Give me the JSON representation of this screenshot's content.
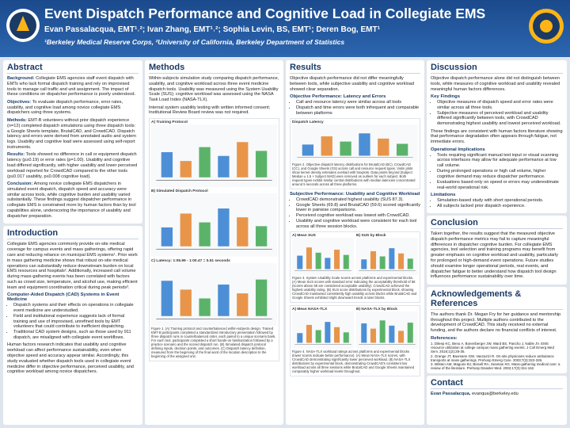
{
  "header": {
    "title": "Event Dispatch Performance and Cognitive Load in Collegiate EMS",
    "authors": "Evan Passalacqua, EMT¹˒²; Ivan Zhang, EMT¹˒²; Sophia Levin, BS, EMT¹; Deren Bog, EMT¹",
    "affiliations": "¹Berkeley Medical Reserve Corps, ²University of California, Berkeley Department of Statistics"
  },
  "sections": {
    "abstract": {
      "heading": "Abstract",
      "blocks": [
        {
          "label": "Background:",
          "p": "Collegiate EMS agencies staff event dispatch with EMTs who lack formal dispatch training and rely on improvised tools to manage call traffic and unit assignment. The impact of these conditions on dispatcher performance is poorly understood."
        },
        {
          "label": "Objectives:",
          "p": "To evaluate dispatch performance, error rates, usability, and cognitive load among novice collegiate EMS dispatchers using three systems."
        },
        {
          "label": "Methods:",
          "p": "EMT-B volunteers without prior dispatch experience (n=12) completed dispatch simulations using three dispatch tools: a Google Sheets template, BrutalCAD, and CrowdCAD. Dispatch latency and errors were derived from annotated audio and system logs. Usability and cognitive load were assessed using self-report instruments."
        },
        {
          "label": "Results:",
          "p": "Tools showed no difference in call or equipment dispatch latency (p≥0.19) or error rates (p=1.00). Usability and cognitive load differed significantly, with higher usability and lower perceived workload reported for CrowdCAD compared to the other tools (p≤0.017 usability, p≤0.008 cognitive load)."
        },
        {
          "label": "Conclusion:",
          "p": "Among novice collegiate EMS dispatchers in simulated event dispatch, dispatch speed and accuracy were similar across tools, while cognitive burden and usability varied substantially. These findings suggest dispatcher performance in collegiate EMS is constrained more by human factors than by tool capabilities alone, underscoring the importance of usability and dispatcher preparation."
        }
      ]
    },
    "introduction": {
      "heading": "Introduction",
      "blocks": [
        {
          "p": "Collegiate EMS agencies commonly provide on-site medical coverage for campus events and mass gatherings, offering rapid care and reducing reliance on municipal EMS systems¹. Prior work in mass gathering medicine shows that robust on-site medical operations can substantially reduce downstream burden on local EMS resources and hospitals². Additionally, increased call volume during mass-gathering events has been correlated with factors such as crowd size, temperature, and alcohol use, making efficient team and equipment coordination critical during peak periods³."
        },
        {
          "sub": "Computer-Aided Dispatch (CAD) Systems in Event Medicine"
        },
        {
          "bullets": [
            "Dispatch systems and their effects on operations in collegiate event medicine are understudied.",
            "Field and institutional experience suggests lack of formal training and use of improvised, unrefined tools by EMT volunteers that could contribute to inefficient dispatching.",
            "Traditional CAD system designs, such as those used by 911 dispatch, are misaligned with collegiate event workflows."
          ]
        },
        {
          "p": "Human factors research indicates that usability and cognitive workload can affect performance sustainability, even when objective speed and accuracy appear similar. Accordingly, this study evaluated whether dispatch tools used in collegiate event medicine differ in objective performance, perceived usability, and cognitive workload among novice dispatchers."
        }
      ]
    },
    "methods": {
      "heading": "Methods",
      "blocks": [
        {
          "p": "Within-subjects simulation study comparing dispatch performance, usability, and cognitive workload across three event medicine dispatch tools. Usability was measured using the System Usability Scale (SUS); cognitive workload was assessed using the NASA Task Load Index (NASA-TLX)."
        },
        {
          "p": "Internal system usability testing with written informed consent; Institutional Review Board review was not required."
        },
        {
          "figure": {
            "panels": [
              "A) Training Protocol",
              "B) Simulated Dispatch Protocol",
              "C) Latency: 1:05.99 - 1:00.47 = 5.51 seconds"
            ],
            "caption": "Figure 1. (A) Training protocol and counterbalanced within-subjects design. Trained EMT-B participants completed a standardized introductory presentation followed by three dispatch runs in counterbalanced order, each paired to a unique scenario bank. For each tool, participants completed a short hands-on familiarization followed by a practice scenario and the scored dispatch run. (B) Simulated dispatch protocol defining inputs, decision points, and outcomes. (C) Dispatch latency definition, measured from the beginning of the final word of the location description to the beginning of the assigned unit."
          }
        }
      ]
    },
    "results": {
      "heading": "Results",
      "blocks": [
        {
          "p": "Objective dispatch performance did not differ meaningfully between tools, while subjective usability and cognitive workload showed clear separation."
        },
        {
          "sub": "Objective Performance: Latency and Errors"
        },
        {
          "bullets": [
            "Call and resource latency were similar across all tools",
            "Dispatch and time errors were both infrequent and comparable between platforms"
          ]
        },
        {
          "figure": {
            "panels": [
              "Dispatch Latency"
            ],
            "caption": "Figure 2. Objective dispatch latency distributions for BrutalCAD (BC), CrowdCAD (CC), and Google Sheets (GS) across call and resource request types. Violin plots show kernel density estimates overlaid with boxplots. Data points beyond [Subject Median ± 1.5 × Subject MAD] were removed as outliers for each subject. Both request types exhibit similar central distributions with median latencies concentrated around 5 seconds across all three platforms."
          }
        },
        {
          "sub": "Subjective Performance: Usability and Cognitive Workload"
        },
        {
          "bullets": [
            "CrowdCAD demonstrated highest usability (SUS 87.3).",
            "Google Sheets (69.8) and BrutalCAD (59.6) scored significantly lower in pairwise comparisons.",
            "Perceived cognitive workload was lowest with CrowdCAD.",
            "Usability and cognitive workload were consistent for each tool across all three session blocks."
          ]
        },
        {
          "figure": {
            "panels": [
              "A) Mean SUS",
              "B) SUS by Block"
            ],
            "caption": "Figure 3. System Usability Scale scores across platforms and experimental blocks. (A) Mean SUS scores with standard error indicating the acceptability threshold of 68 (scores above 68 are considered acceptable usability). CrowdCAD achieved the highest usability rating. (B) SUS score distributions by experimental block, showing CrowdCAD maintained consistently high usability across blocks while BrutalCAD and Google Sheets exhibited slight downward trends in later blocks."
          }
        },
        {
          "figure": {
            "panels": [
              "A) Mean NASA-TLX",
              "B) NASA-TLX by Block"
            ],
            "caption": "Figure 4. NASA-TLX workload ratings across platforms and experimental blocks (lower scores indicate better performance). (A) Mean NASA-TLX scores, with CrowdCAD demonstrating significantly lower perceived workload. (B) NASA-TLX distributions by experimental block, demonstrating CrowdCAD's consistent low workload across all three sessions while BrutalCAD and Google Sheets maintained comparably higher workload levels throughout."
          }
        }
      ]
    },
    "discussion": {
      "heading": "Discussion",
      "blocks": [
        {
          "p": "Objective dispatch performance alone did not distinguish between tools, while measures of cognitive workload and usability revealed meaningful human factors differences."
        },
        {
          "sub": "Key Findings"
        },
        {
          "bullets": [
            "Objective measures of dispatch speed and error rates were similar across all three tools.",
            "Subjective measures of perceived workload and usability differed significantly between tools, with CrowdCAD demonstrating highest usability and lowest perceived workload."
          ]
        },
        {
          "p": "These findings are consistent with human factors literature showing that performance degradation often appears through fatigue, not immediate errors."
        },
        {
          "sub": "Operational Implications"
        },
        {
          "bullets": [
            "Tools requiring significant manual text input or visual scanning across interfaces may allow for adequate performance at low call volume.",
            "During prolonged operations or high call volume, higher cognitive demand may reduce dispatcher performance.",
            "Evaluations based only on speed or errors may underestimate real-world operational risk."
          ]
        },
        {
          "sub": "Limitations"
        },
        {
          "bullets": [
            "Simulation-based study with short operational periods.",
            "All subjects lacked prior dispatch experience."
          ]
        }
      ]
    },
    "conclusion": {
      "heading": "Conclusion",
      "blocks": [
        {
          "p": "Taken together, the results suggest that the measured objective dispatch performance metrics may fail to capture meaningful differences in dispatcher cognitive burden. For collegiate EMS agencies, tool selection and training programs may benefit from greater emphasis on cognitive workload and usability, particularly for prolonged or high-demand event operations. Future studies should examine longer operational periods, real events, and dispatcher fatigue to better understand how dispatch tool design influences performance sustainability over time."
        }
      ]
    },
    "acknowledgements": {
      "heading": "Acknowledgements & References",
      "blocks": [
        {
          "p": "The authors thank Dr. Megan Fry for her guidance and mentorship throughout this project. Multiple authors contributed to the development of CrowdCAD. This study received no external funding, and the authors declare no financial conflicts of interest."
        },
        {
          "sub": "References:"
        },
        {
          "refs": [
            "1. Dileep KC, Beno A, Bonenberger JW, Ward BS, Pancho J, Nable JV. EMS resource utilization at college campus mass gathering events. J Coll Emerg Med Serv. 2018;1(2):28-35.",
            "2. Grange JT, Baumann GW, Vaezazizi R. On-site physicians reduce ambulance transports at mass gatherings. Prehosp Emerg Care. 2003;7(3):322-326.",
            "3. Milsten AM, Maguire BJ, Bissell RA, Seaman KG. Mass-gathering medical care: a review of the literature. Prehosp Disaster Med. 2002;17(3):151-162."
          ]
        }
      ]
    },
    "contact": {
      "heading": "Contact",
      "blocks": [
        {
          "label": "Evan Passalacqua,",
          "p": "evanqua@berkeley.edu"
        }
      ]
    }
  }
}
